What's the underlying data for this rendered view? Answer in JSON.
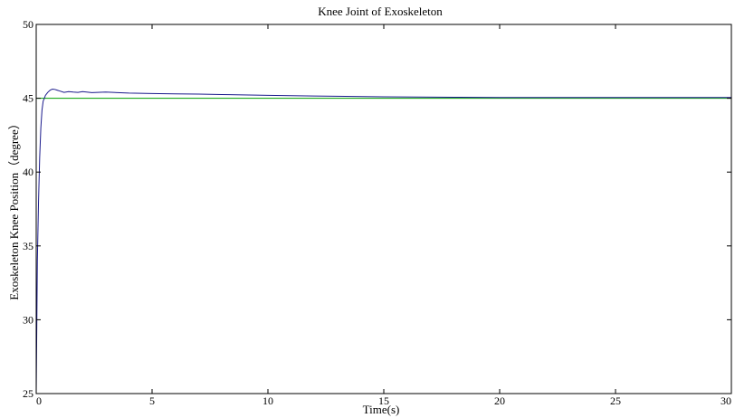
{
  "chart_data": {
    "type": "line",
    "title": "Knee Joint of Exoskeleton",
    "xlabel": "Time(s)",
    "ylabel": "Exoskeleton Knee Position（degree）",
    "xlim": [
      0,
      30
    ],
    "ylim": [
      25,
      50
    ],
    "xticks": [
      0,
      5,
      10,
      15,
      20,
      25,
      30
    ],
    "yticks": [
      25,
      30,
      35,
      40,
      45,
      50
    ],
    "grid": false,
    "series": [
      {
        "color": "#00a000",
        "x": [
          0,
          30
        ],
        "y": [
          45,
          45
        ]
      },
      {
        "color": "#1a1a8c",
        "x": [
          0,
          0.05,
          0.1,
          0.15,
          0.2,
          0.25,
          0.3,
          0.4,
          0.5,
          0.6,
          0.7,
          0.8,
          0.9,
          1.0,
          1.2,
          1.4,
          1.6,
          1.8,
          2.0,
          2.4,
          3.0,
          4.0,
          5.0,
          6.0,
          7.0,
          8.0,
          10.0,
          12.0,
          15.0,
          18.0,
          20.0,
          25.0,
          30.0
        ],
        "y": [
          25,
          34,
          38,
          41,
          43,
          44.2,
          44.8,
          45.2,
          45.4,
          45.55,
          45.62,
          45.6,
          45.55,
          45.5,
          45.4,
          45.45,
          45.42,
          45.4,
          45.45,
          45.38,
          45.42,
          45.35,
          45.32,
          45.3,
          45.28,
          45.25,
          45.2,
          45.15,
          45.1,
          45.07,
          45.05,
          45.05,
          45.05
        ]
      }
    ]
  }
}
